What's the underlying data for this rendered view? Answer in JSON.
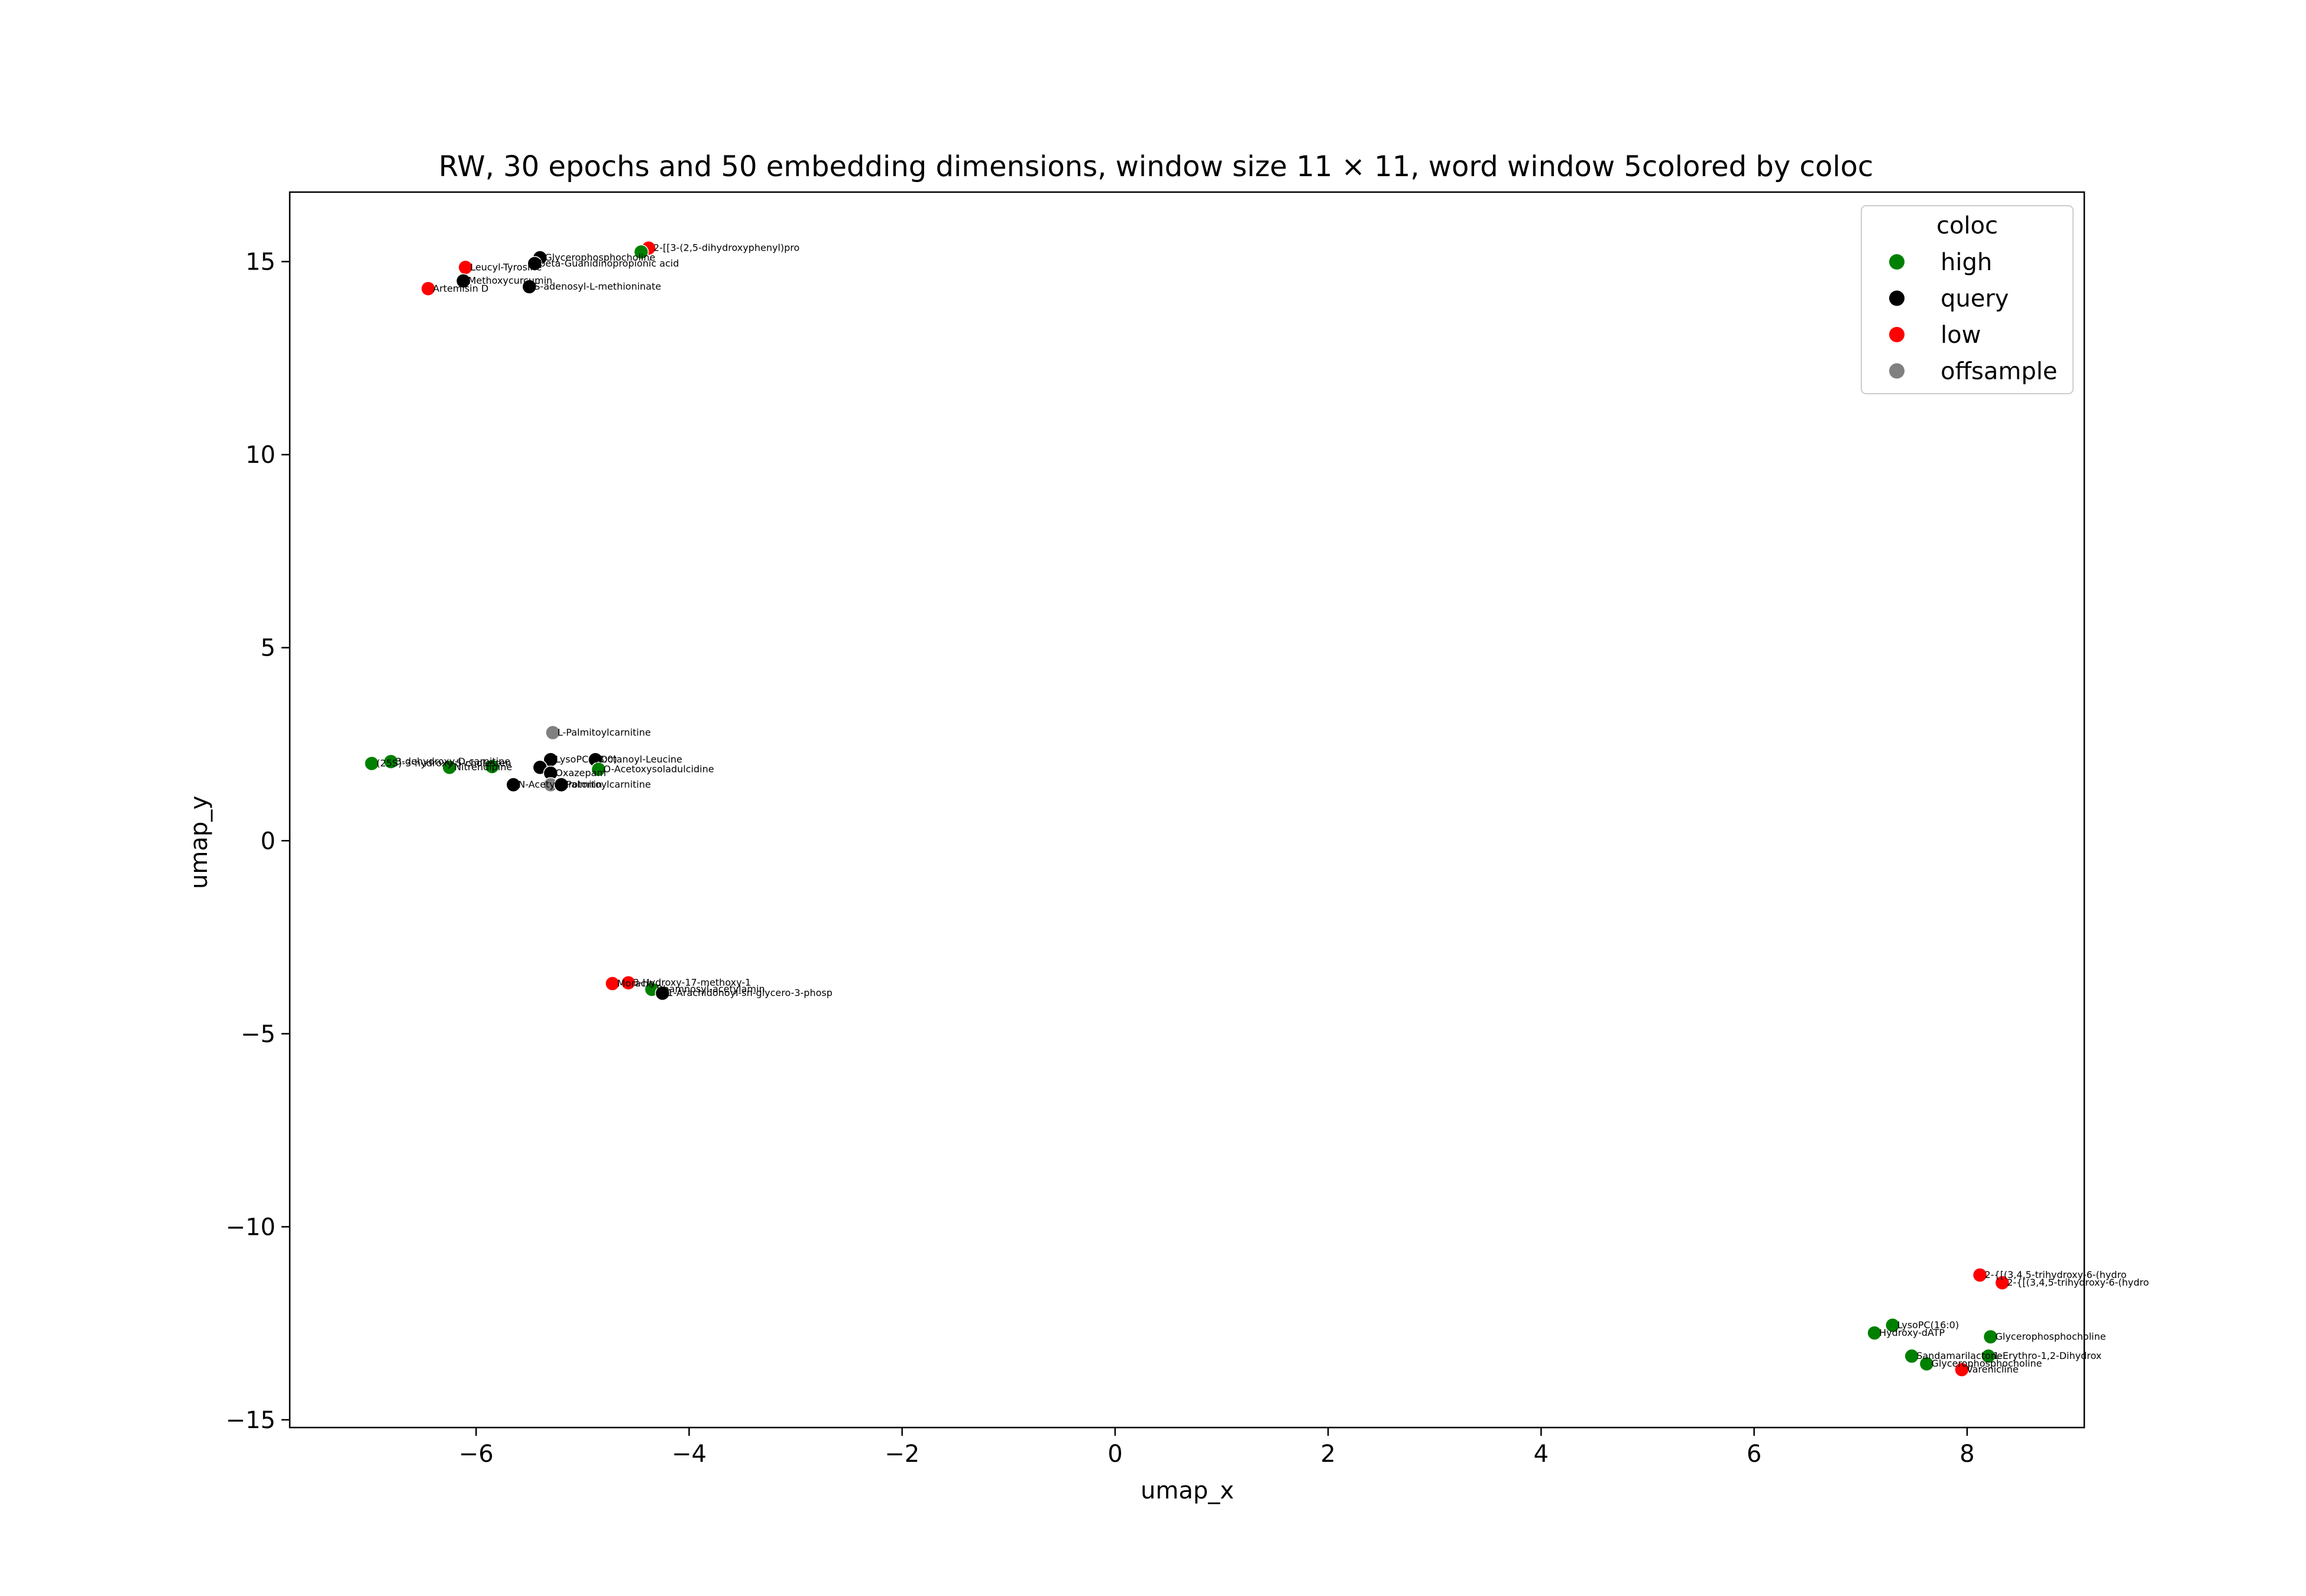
{
  "chart_data": {
    "type": "scatter",
    "title": "RW, 30 epochs and 50 embedding dimensions, window size 11 × 11, word window 5colored by coloc",
    "xlabel": "umap_x",
    "ylabel": "umap_y",
    "xlim": [
      -7.75,
      9.1
    ],
    "ylim": [
      -15.2,
      16.8
    ],
    "xticks": [
      -6,
      -4,
      -2,
      0,
      2,
      4,
      6,
      8
    ],
    "xtick_labels": [
      "−6",
      "−4",
      "−2",
      "0",
      "2",
      "4",
      "6",
      "8"
    ],
    "yticks": [
      -15,
      -10,
      -5,
      0,
      5,
      10,
      15
    ],
    "ytick_labels": [
      "−15",
      "−10",
      "−5",
      "0",
      "5",
      "10",
      "15"
    ],
    "grid": false,
    "legend": {
      "title": "coloc",
      "placement": "top-right",
      "entries": [
        {
          "label": "high",
          "color": "#008000"
        },
        {
          "label": "query",
          "color": "#000000"
        },
        {
          "label": "low",
          "color": "#ff0000"
        },
        {
          "label": "offsample",
          "color": "#808080"
        }
      ]
    },
    "colors": {
      "high": "#008000",
      "query": "#000000",
      "low": "#ff0000",
      "offsample": "#808080"
    },
    "points": [
      {
        "x": -4.38,
        "y": 15.35,
        "cat": "low",
        "label": "2-[[3-(2,5-dihydroxyphenyl)pro"
      },
      {
        "x": -4.45,
        "y": 15.25,
        "cat": "high",
        "label": ""
      },
      {
        "x": -5.4,
        "y": 15.1,
        "cat": "query",
        "label": "Glycerophosphocholine"
      },
      {
        "x": -5.45,
        "y": 14.95,
        "cat": "query",
        "label": "beta-Guanidinopropionic acid"
      },
      {
        "x": -6.1,
        "y": 14.85,
        "cat": "low",
        "label": "Leucyl-Tyrosine"
      },
      {
        "x": -6.12,
        "y": 14.5,
        "cat": "query",
        "label": "Methoxycurcumin"
      },
      {
        "x": -6.45,
        "y": 14.3,
        "cat": "low",
        "label": "Artemisin D"
      },
      {
        "x": -5.5,
        "y": 14.35,
        "cat": "query",
        "label": "S-adenosyl-L-methioninate"
      },
      {
        "x": -5.28,
        "y": 2.8,
        "cat": "offsample",
        "label": "L-Palmitoylcarnitine"
      },
      {
        "x": -6.98,
        "y": 2.0,
        "cat": "high",
        "label": "(25S)-3-hydroxy-5-cholesten"
      },
      {
        "x": -6.8,
        "y": 2.05,
        "cat": "high",
        "label": "3-dehydroxy-D-carnitine"
      },
      {
        "x": -6.25,
        "y": 1.9,
        "cat": "high",
        "label": "Nitrendipine"
      },
      {
        "x": -5.85,
        "y": 1.92,
        "cat": "high",
        "label": ""
      },
      {
        "x": -5.3,
        "y": 2.1,
        "cat": "query",
        "label": "LysoPC(18:0)"
      },
      {
        "x": -5.4,
        "y": 1.9,
        "cat": "query",
        "label": ""
      },
      {
        "x": -4.88,
        "y": 2.1,
        "cat": "query",
        "label": "Octanoyl-Leucine"
      },
      {
        "x": -4.85,
        "y": 1.85,
        "cat": "high",
        "label": "O-Acetoxysoladulcidine"
      },
      {
        "x": -5.3,
        "y": 1.75,
        "cat": "query",
        "label": "Oxazepam"
      },
      {
        "x": -5.65,
        "y": 1.45,
        "cat": "query",
        "label": "N-Acetylserotonin"
      },
      {
        "x": -5.3,
        "y": 1.45,
        "cat": "offsample",
        "label": ""
      },
      {
        "x": -5.2,
        "y": 1.45,
        "cat": "query",
        "label": "Palmitoylcarnitine"
      },
      {
        "x": -4.72,
        "y": -3.7,
        "cat": "low",
        "label": "Moracin"
      },
      {
        "x": -4.57,
        "y": -3.68,
        "cat": "low",
        "label": "3-Hydroxy-17-methoxy-1"
      },
      {
        "x": -4.35,
        "y": -3.85,
        "cat": "high",
        "label": "Rhamnosyl-acetylamin"
      },
      {
        "x": -4.25,
        "y": -3.95,
        "cat": "query",
        "label": "1-Arachidonoyl-sn-glycero-3-phosp"
      },
      {
        "x": 8.12,
        "y": -11.25,
        "cat": "low",
        "label": "2-{[(3,4,5-trihydroxy-6-(hydro"
      },
      {
        "x": 8.33,
        "y": -11.45,
        "cat": "low",
        "label": "2-{[(3,4,5-trihydroxy-6-(hydro"
      },
      {
        "x": 7.3,
        "y": -12.55,
        "cat": "high",
        "label": "LysoPC(16:0)"
      },
      {
        "x": 7.13,
        "y": -12.75,
        "cat": "high",
        "label": "Hydroxy-dATP"
      },
      {
        "x": 8.22,
        "y": -12.85,
        "cat": "high",
        "label": "Glycerophosphocholine"
      },
      {
        "x": 7.48,
        "y": -13.35,
        "cat": "high",
        "label": "Sandamarilactone"
      },
      {
        "x": 8.2,
        "y": -13.35,
        "cat": "high",
        "label": "1-Erythro-1,2-Dihydrox"
      },
      {
        "x": 7.62,
        "y": -13.55,
        "cat": "high",
        "label": "Glycerophosphocholine"
      },
      {
        "x": 7.95,
        "y": -13.7,
        "cat": "low",
        "label": "Varenicline"
      }
    ]
  }
}
